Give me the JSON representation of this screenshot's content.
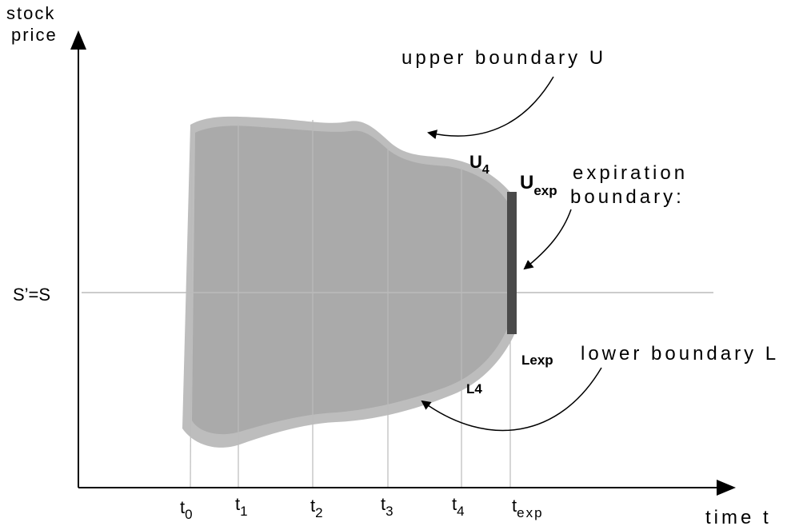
{
  "axes": {
    "y_label_line1": "stock",
    "y_label_line2": "price",
    "x_label": "time t"
  },
  "reference_line": {
    "label": "S’=S"
  },
  "time_ticks": [
    {
      "base": "t",
      "sub": "0"
    },
    {
      "base": "t",
      "sub": "1"
    },
    {
      "base": "t",
      "sub": "2"
    },
    {
      "base": "t",
      "sub": "3"
    },
    {
      "base": "t",
      "sub": "4"
    },
    {
      "base": "t",
      "sub": "exp"
    }
  ],
  "annotations": {
    "upper_boundary": "upper boundary U",
    "lower_boundary": "lower boundary L",
    "expiration_line1": "expiration",
    "expiration_line2": "boundary:",
    "u4_base": "U",
    "u4_sub": "4",
    "uexp_base": "U",
    "uexp_sub": "exp",
    "l4": "L4",
    "lexp": "Lexp"
  },
  "colors": {
    "region_fill": "#aaaaaa",
    "region_edge": "#bdbdbd",
    "expiration_bar": "#4a4a4a",
    "gridline": "#bbbbbb",
    "axis": "#000000"
  }
}
